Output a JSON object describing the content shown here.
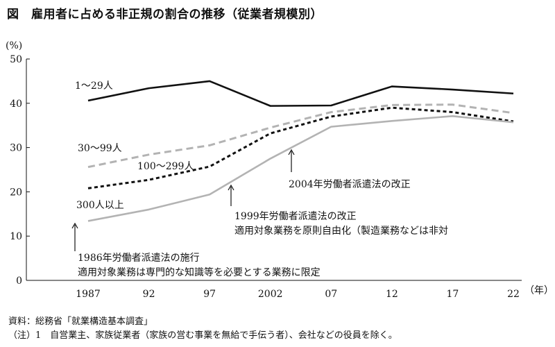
{
  "title": "図　雇用者に占める非正規の割合の推移（従業者規模別）",
  "chart_data": {
    "type": "line",
    "ylabel": "(%)",
    "xlabel": "（年）",
    "ylim": [
      0,
      50
    ],
    "yticks": [
      0,
      10,
      20,
      30,
      40,
      50
    ],
    "categories": [
      "1987",
      "92",
      "97",
      "2002",
      "07",
      "12",
      "17",
      "22"
    ],
    "grid": false,
    "series": [
      {
        "name": "1～29人",
        "values": [
          40.6,
          43.4,
          45.0,
          39.4,
          39.5,
          43.8,
          43.1,
          42.2
        ],
        "color": "#111111",
        "dash": "solid"
      },
      {
        "name": "30～99人",
        "values": [
          25.6,
          28.4,
          30.5,
          34.5,
          38.0,
          39.6,
          39.7,
          37.8
        ],
        "color": "#b3b3b3",
        "dash": "dashed"
      },
      {
        "name": "100～299人",
        "values": [
          20.8,
          22.7,
          25.7,
          33.2,
          37.0,
          39.0,
          38.0,
          35.9
        ],
        "color": "#111111",
        "dash": "dotted"
      },
      {
        "name": "300人以上",
        "values": [
          13.4,
          16.0,
          19.4,
          27.5,
          34.7,
          36.0,
          37.1,
          35.7
        ],
        "color": "#b3b3b3",
        "dash": "solid"
      }
    ],
    "annotations": {
      "a1986_line1": "1986年労働者派遣法の施行",
      "a1986_line2": "適用対象業務は専門的な知識等を必要とする業務に限定",
      "a1999_line1": "1999年労働者派遣法の改正",
      "a1999_line2": "適用対象業務を原則自由化（製造業務などは非対",
      "a2004": "2004年労働者派遣法の改正"
    }
  },
  "source": {
    "line1": "資料：総務省「就業構造基本調査」",
    "line2": "（注）1　自営業主、家族従業者（家族の営む事業を無給で手伝う者）、会社などの役員を除く。"
  }
}
